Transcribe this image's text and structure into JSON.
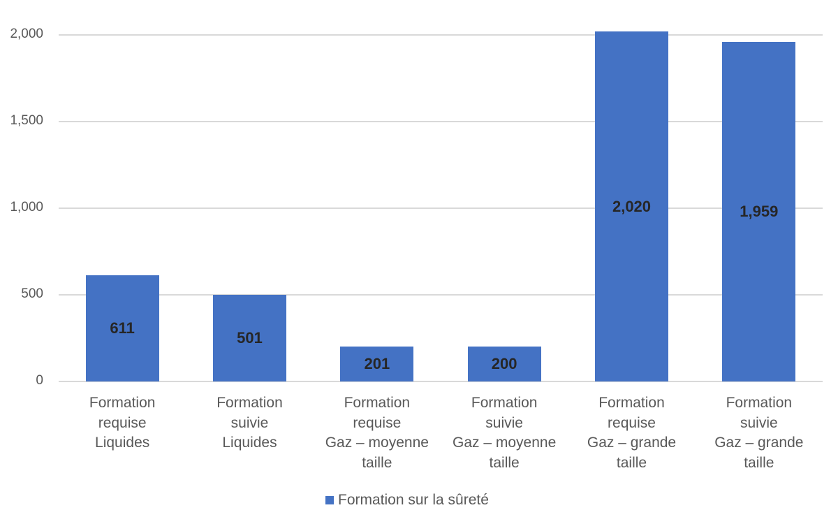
{
  "chart_data": {
    "type": "bar",
    "title": "",
    "xlabel": "",
    "ylabel": "",
    "ylim": [
      0,
      2000
    ],
    "yticks": [
      0,
      500,
      1000,
      1500,
      2000
    ],
    "ytick_labels": [
      "0",
      "500",
      "1,000",
      "1,500",
      "2,000"
    ],
    "grid": true,
    "legend_position": "bottom",
    "categories": [
      "Formation\nrequise\nLiquides",
      "Formation\nsuivie\nLiquides",
      "Formation\nrequise\nGaz – moyenne\ntaille",
      "Formation\nsuivie\nGaz – moyenne\ntaille",
      "Formation\nrequise\nGaz – grande\ntaille",
      "Formation\nsuivie\nGaz – grande\ntaille"
    ],
    "series": [
      {
        "name": "Formation sur la sûreté",
        "color": "#4472c4",
        "values": [
          611,
          501,
          201,
          200,
          2020,
          1959
        ],
        "data_labels": [
          "611",
          "501",
          "201",
          "200",
          "2,020",
          "1,959"
        ]
      }
    ]
  },
  "legend": {
    "label": "Formation sur la sûreté"
  }
}
